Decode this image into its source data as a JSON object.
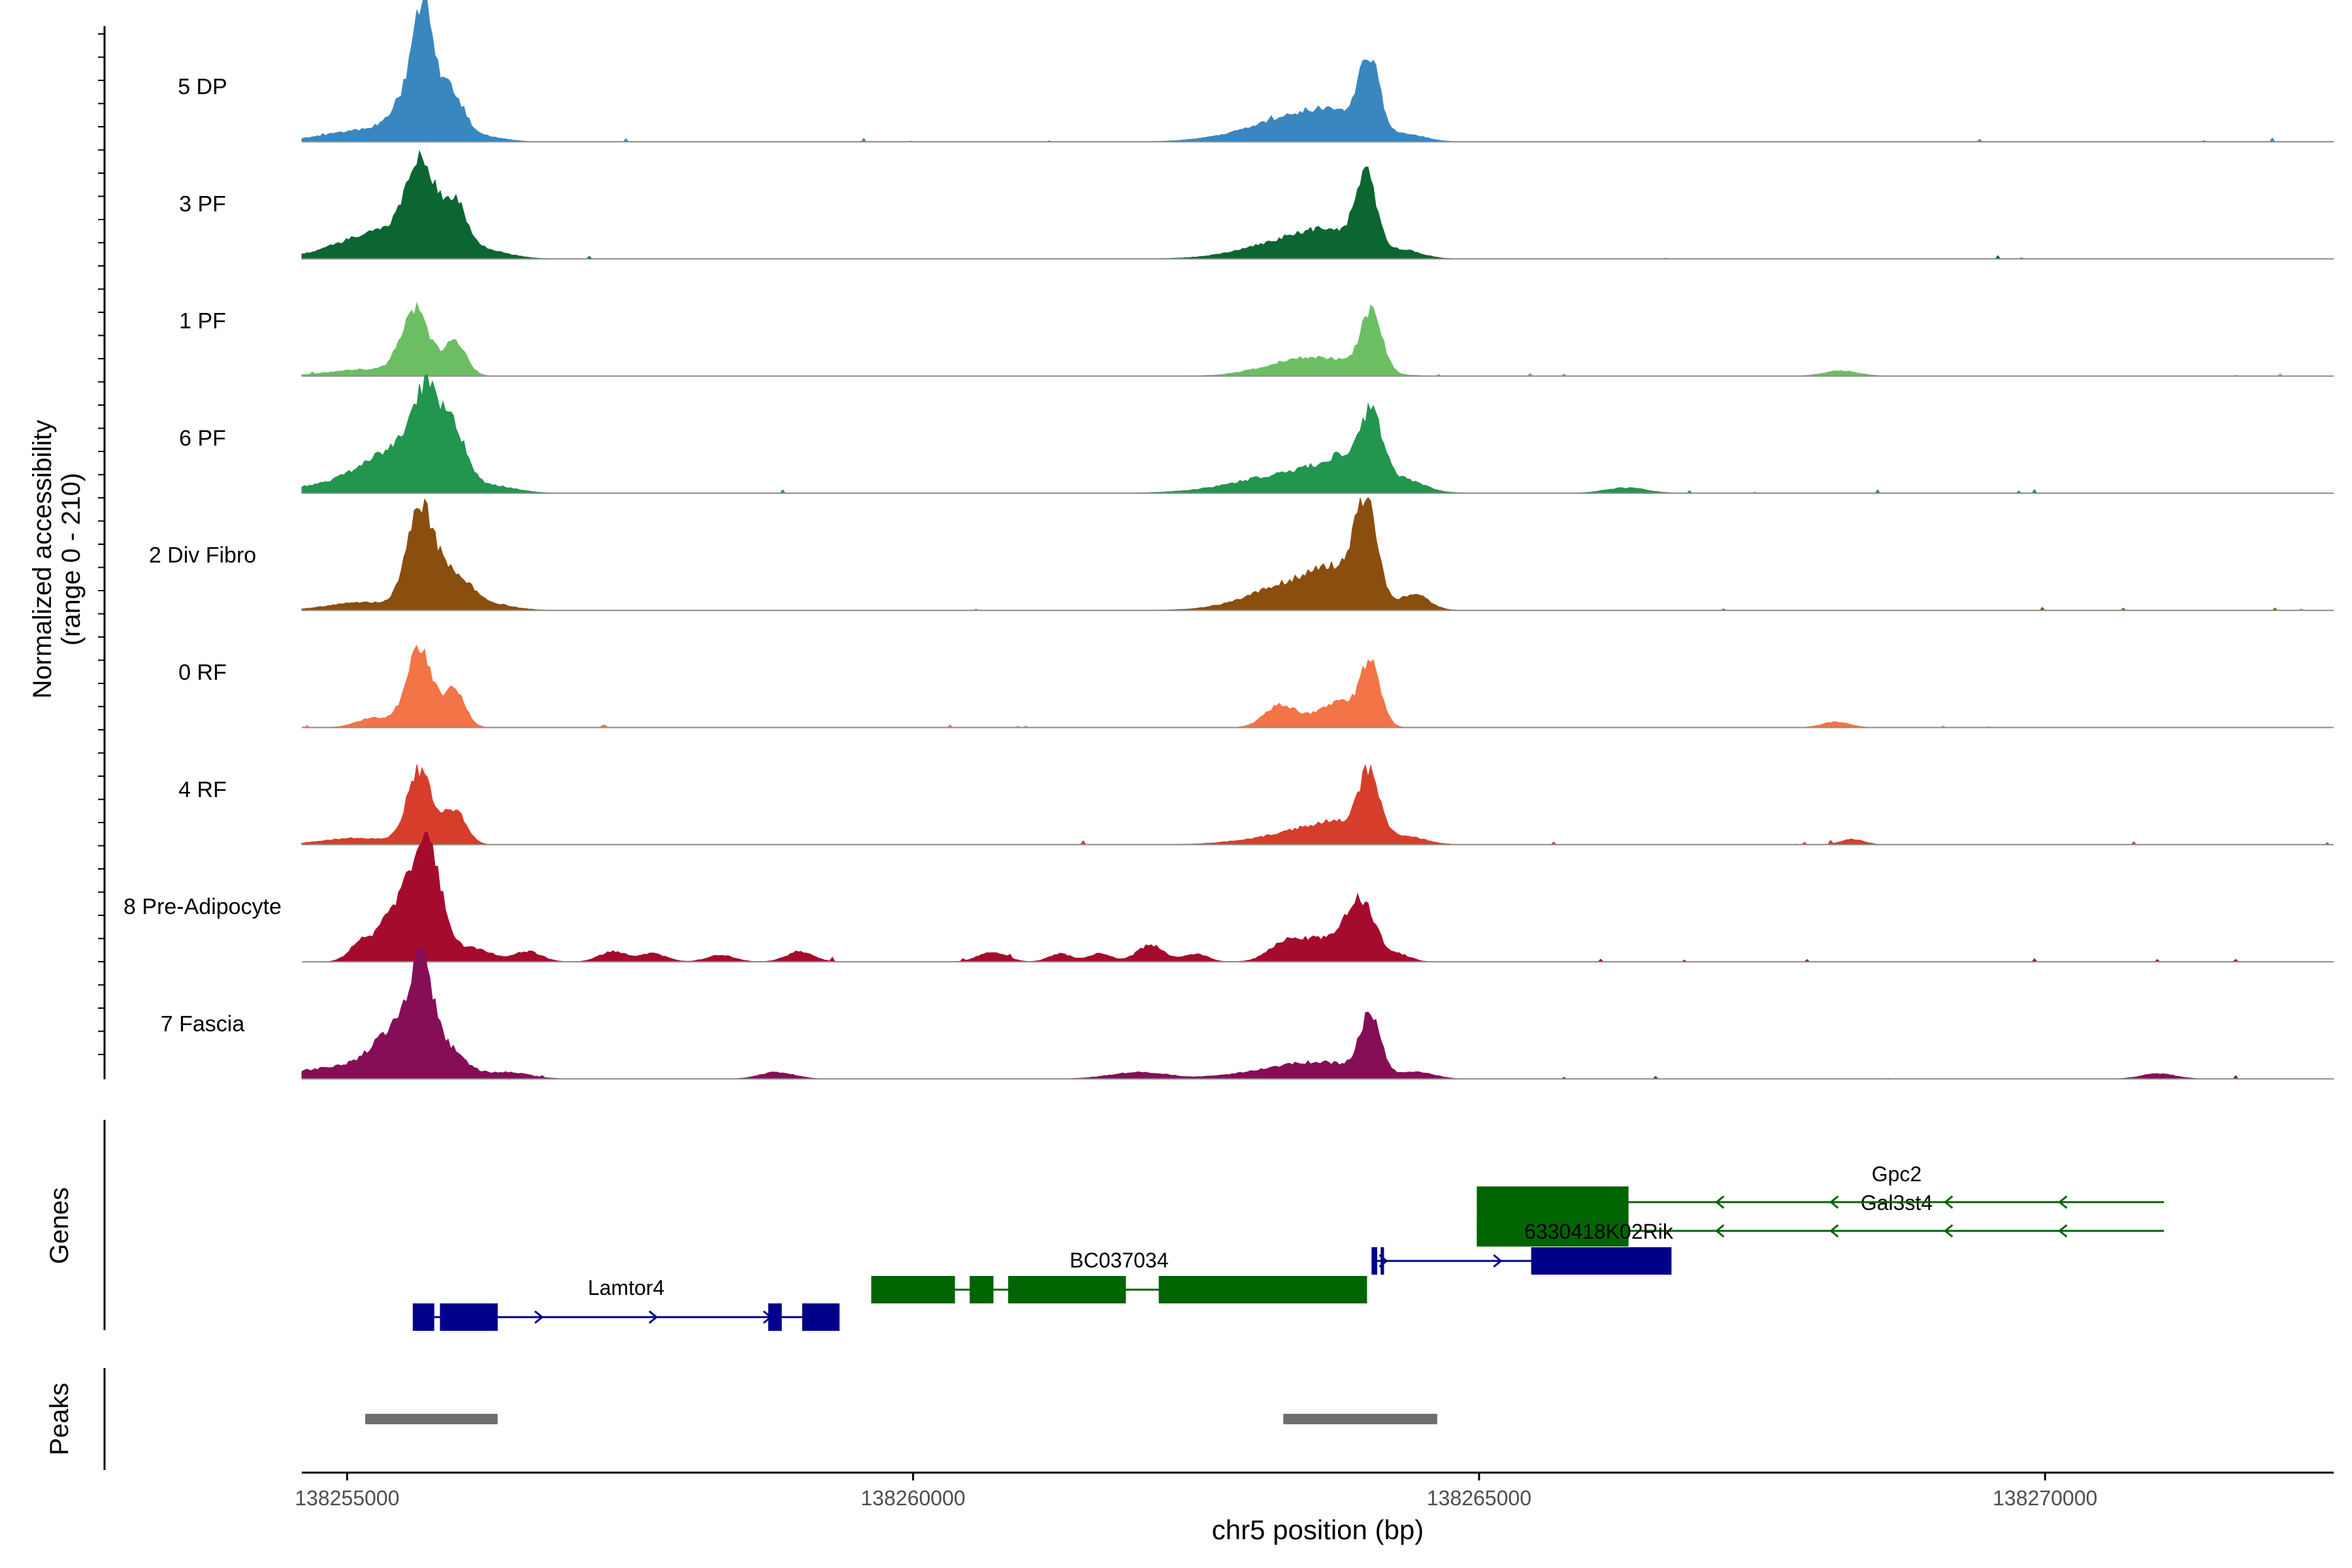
{
  "chart_data": {
    "type": "area",
    "title": "",
    "ylabel_line1": "Normalized accessibility",
    "ylabel_line2": "(range 0 - 210)",
    "xlabel": "chr5 position (bp)",
    "ylim": [
      0,
      210
    ],
    "xlim": [
      138254600,
      138272550
    ],
    "x_ticks": [
      138255000,
      138260000,
      138265000,
      138270000
    ],
    "x_tick_labels": [
      "138255000",
      "138260000",
      "138265000",
      "138270000"
    ],
    "tracks": [
      {
        "name": "5 DP",
        "color": "#3a87c0",
        "peaks": [
          [
            138255200,
            380,
            18
          ],
          [
            138255560,
            150,
            60
          ],
          [
            138255680,
            90,
            150
          ],
          [
            138255920,
            110,
            70
          ],
          [
            138256200,
            180,
            8
          ],
          [
            138263300,
            420,
            28
          ],
          [
            138263700,
            300,
            30
          ],
          [
            138264030,
            90,
            110
          ],
          [
            138264400,
            150,
            8
          ]
        ]
      },
      {
        "name": "3 PF",
        "color": "#0b6632",
        "peaks": [
          [
            138255400,
            420,
            45
          ],
          [
            138255650,
            120,
            110
          ],
          [
            138255950,
            110,
            65
          ],
          [
            138256250,
            200,
            8
          ],
          [
            138263300,
            400,
            22
          ],
          [
            138263700,
            300,
            30
          ],
          [
            138264000,
            90,
            110
          ],
          [
            138264350,
            160,
            10
          ]
        ]
      },
      {
        "name": "1 PF",
        "color": "#6bbf62",
        "peaks": [
          [
            138255150,
            300,
            10
          ],
          [
            138255600,
            120,
            100
          ],
          [
            138255950,
            100,
            50
          ],
          [
            138263300,
            300,
            15
          ],
          [
            138263700,
            300,
            20
          ],
          [
            138264050,
            90,
            90
          ],
          [
            138268200,
            150,
            8
          ]
        ]
      },
      {
        "name": "6 PF",
        "color": "#22954e",
        "peaks": [
          [
            138255000,
            400,
            15
          ],
          [
            138255500,
            300,
            60
          ],
          [
            138255700,
            120,
            110
          ],
          [
            138255950,
            110,
            70
          ],
          [
            138256300,
            200,
            10
          ],
          [
            138263400,
            500,
            30
          ],
          [
            138263900,
            250,
            40
          ],
          [
            138264050,
            90,
            80
          ],
          [
            138264400,
            150,
            10
          ],
          [
            138266300,
            180,
            8
          ]
        ]
      },
      {
        "name": "2 Div Fibro",
        "color": "#8a4e0f",
        "peaks": [
          [
            138255150,
            300,
            12
          ],
          [
            138255650,
            120,
            150
          ],
          [
            138255950,
            140,
            50
          ],
          [
            138256250,
            200,
            10
          ],
          [
            138263400,
            400,
            40
          ],
          [
            138263800,
            250,
            40
          ],
          [
            138264000,
            90,
            135
          ],
          [
            138264450,
            120,
            20
          ]
        ]
      },
      {
        "name": "0 RF",
        "color": "#f37446",
        "peaks": [
          [
            138255250,
            150,
            15
          ],
          [
            138255640,
            110,
            120
          ],
          [
            138255950,
            90,
            60
          ],
          [
            138263230,
            130,
            30
          ],
          [
            138263550,
            200,
            15
          ],
          [
            138263780,
            130,
            30
          ],
          [
            138264040,
            90,
            95
          ],
          [
            138268150,
            120,
            8
          ]
        ]
      },
      {
        "name": "4 RF",
        "color": "#d73d2b",
        "peaks": [
          [
            138255100,
            300,
            10
          ],
          [
            138255640,
            110,
            110
          ],
          [
            138255950,
            100,
            50
          ],
          [
            138263400,
            400,
            15
          ],
          [
            138263800,
            300,
            25
          ],
          [
            138264030,
            90,
            90
          ],
          [
            138264400,
            150,
            8
          ],
          [
            138268300,
            100,
            8
          ]
        ]
      },
      {
        "name": "8 Pre-Adipocyte",
        "color": "#a50b2c",
        "peaks": [
          [
            138255120,
            100,
            25
          ],
          [
            138255500,
            180,
            90
          ],
          [
            138255720,
            120,
            130
          ],
          [
            138256100,
            180,
            20
          ],
          [
            138256600,
            120,
            15
          ],
          [
            138257350,
            120,
            15
          ],
          [
            138257700,
            120,
            12
          ],
          [
            138258300,
            120,
            10
          ],
          [
            138259000,
            120,
            15
          ],
          [
            138260700,
            120,
            15
          ],
          [
            138261300,
            100,
            12
          ],
          [
            138261650,
            100,
            12
          ],
          [
            138262100,
            120,
            25
          ],
          [
            138262500,
            100,
            12
          ],
          [
            138263300,
            150,
            30
          ],
          [
            138263600,
            150,
            30
          ],
          [
            138263950,
            130,
            95
          ],
          [
            138264300,
            100,
            10
          ]
        ]
      },
      {
        "name": "7 Fascia",
        "color": "#850e57",
        "peaks": [
          [
            138254950,
            400,
            18
          ],
          [
            138255450,
            200,
            70
          ],
          [
            138255660,
            100,
            130
          ],
          [
            138255900,
            150,
            40
          ],
          [
            138256400,
            200,
            10
          ],
          [
            138258800,
            150,
            10
          ],
          [
            138262000,
            250,
            10
          ],
          [
            138263300,
            400,
            15
          ],
          [
            138263700,
            300,
            15
          ],
          [
            138264040,
            90,
            90
          ],
          [
            138264450,
            150,
            10
          ],
          [
            138271000,
            150,
            8
          ]
        ]
      }
    ],
    "genes": {
      "label": "Genes",
      "items": [
        {
          "name": "Lamtor4",
          "strand": "+",
          "color": "#00008b",
          "start": 138255580,
          "end": 138259350,
          "exons": [
            [
              138255580,
              138255770
            ],
            [
              138255820,
              138256330
            ],
            [
              138258720,
              138258840
            ],
            [
              138259020,
              138259350
            ]
          ]
        },
        {
          "name": "BC037034",
          "strand": "",
          "color": "#006400",
          "start": 138259630,
          "end": 138264010,
          "exons": [
            [
              138259630,
              138260370
            ],
            [
              138260500,
              138260710
            ],
            [
              138260840,
              138261880
            ],
            [
              138262170,
              138264010
            ]
          ]
        },
        {
          "name": "6330418K02Rik",
          "strand": "+",
          "color": "#00008b",
          "start": 138264050,
          "end": 138266700,
          "exons": [
            [
              138264050,
              138264100
            ],
            [
              138264130,
              138264160
            ],
            [
              138265460,
              138266700
            ]
          ]
        },
        {
          "name": "Gpc2",
          "strand": "-",
          "color": "#006400",
          "start": 138264980,
          "end": 138271050,
          "exons": [
            [
              138264980,
              138266320
            ]
          ]
        },
        {
          "name": "Gal3st4",
          "strand": "-",
          "color": "#006400",
          "start": 138264980,
          "end": 138271050,
          "exons": [
            [
              138264980,
              138266320
            ]
          ]
        }
      ]
    },
    "peaks_track": {
      "label": "Peaks",
      "color": "#6e6e6e",
      "regions": [
        [
          138255160,
          138256330
        ],
        [
          138263270,
          138264630
        ]
      ]
    }
  }
}
